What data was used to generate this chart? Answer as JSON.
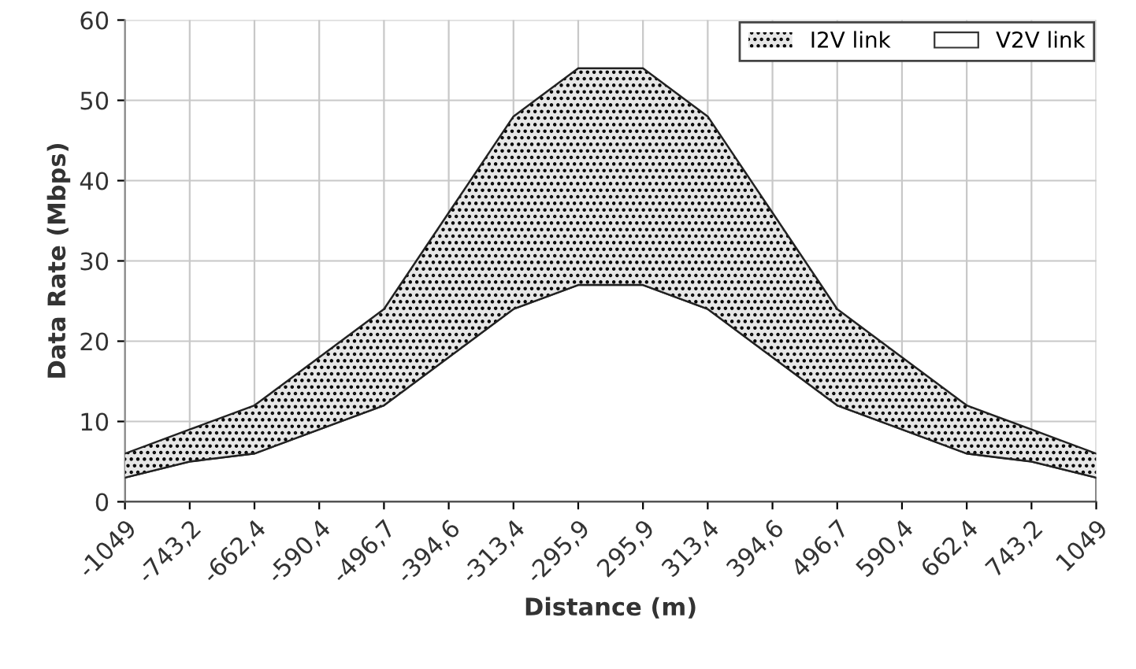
{
  "chart_data": {
    "type": "area",
    "stacked": true,
    "xlabel": "Distance (m)",
    "ylabel": "Data Rate (Mbps)",
    "categories": [
      "-1049",
      "-743,2",
      "-662,4",
      "-590,4",
      "-496,7",
      "-394,6",
      "-313,4",
      "-295,9",
      "295,9",
      "313,4",
      "394,6",
      "496,7",
      "590,4",
      "662,4",
      "743,2",
      "1049"
    ],
    "series": [
      {
        "name": "V2V link",
        "color": "#ffffff",
        "values": [
          3,
          5,
          6,
          9,
          12,
          18,
          24,
          27,
          27,
          24,
          18,
          12,
          9,
          6,
          5,
          3
        ]
      },
      {
        "name": "I2V link",
        "color": "#e6e6e6",
        "values": [
          3,
          4,
          6,
          9,
          12,
          18,
          24,
          27,
          27,
          24,
          18,
          12,
          9,
          6,
          4,
          3
        ]
      }
    ],
    "ylim": [
      0,
      60
    ],
    "yticks": [
      0,
      10,
      20,
      30,
      40,
      50,
      60
    ],
    "grid": true,
    "legend": "top right"
  }
}
